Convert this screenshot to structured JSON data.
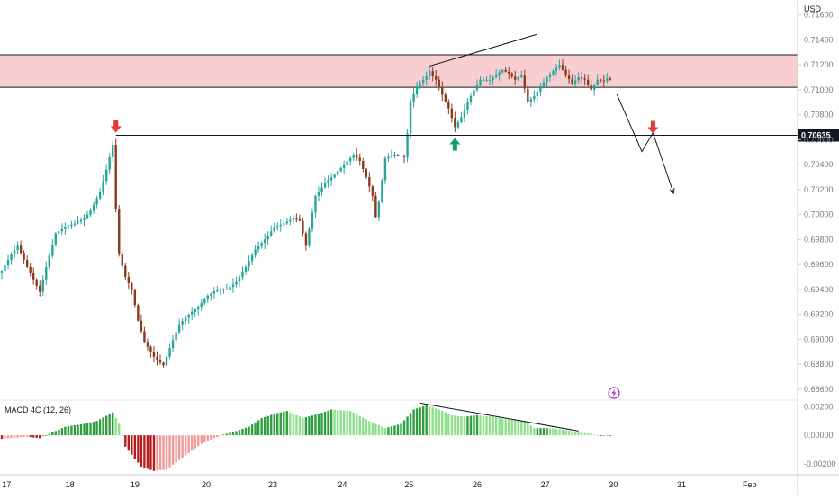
{
  "currency_unit": "USD",
  "indicator": {
    "name": "MACD 4C (12, 26)"
  },
  "price_tag": "0.70635",
  "colors": {
    "bull": "#26a69a",
    "bear": "#8b3a1e",
    "zone_fill": "#f7c5cb",
    "arrow_red": "#e53935",
    "arrow_green": "#0f9d77",
    "hist_pos_strong": "#2e9e3e",
    "hist_pos_light": "#8ee08a",
    "hist_neg_strong": "#b71c1c",
    "hist_neg_light": "#ef9a9a",
    "lightning": "#9c27b0"
  },
  "chart_data": {
    "type": "candlestick",
    "price_axis": {
      "ticks": [
        "0.71600",
        "0.71400",
        "0.71200",
        "0.71000",
        "0.70800",
        "0.70600",
        "0.70400",
        "0.70200",
        "0.70000",
        "0.69800",
        "0.69600",
        "0.69400",
        "0.69200",
        "0.69000",
        "0.68800",
        "0.68600"
      ],
      "ylim": [
        0.6852,
        0.7172
      ]
    },
    "time_axis": {
      "labels": [
        "17",
        "18",
        "19",
        "20",
        "23",
        "24",
        "25",
        "26",
        "27",
        "30",
        "31",
        "Feb"
      ]
    },
    "indicator_axis": {
      "ticks": [
        "0.00200",
        "0.00000",
        "-0.00200"
      ],
      "ylim": [
        -0.0027,
        0.0024
      ]
    },
    "resistance_zone": {
      "low": 0.7102,
      "high": 0.7128
    },
    "horizontal_level": 0.70635,
    "candle_anchors": [
      {
        "i": 0,
        "p": 0.6955
      },
      {
        "i": 3,
        "p": 0.6968
      },
      {
        "i": 5,
        "p": 0.6975
      },
      {
        "i": 8,
        "p": 0.6958
      },
      {
        "i": 10,
        "p": 0.6948
      },
      {
        "i": 12,
        "p": 0.6938
      },
      {
        "i": 14,
        "p": 0.6958
      },
      {
        "i": 17,
        "p": 0.6985
      },
      {
        "i": 20,
        "p": 0.699
      },
      {
        "i": 23,
        "p": 0.6993
      },
      {
        "i": 26,
        "p": 0.6997
      },
      {
        "i": 28,
        "p": 0.7003
      },
      {
        "i": 31,
        "p": 0.7018
      },
      {
        "i": 33,
        "p": 0.7036
      },
      {
        "i": 35,
        "p": 0.7056
      },
      {
        "i": 36,
        "p": 0.7004
      },
      {
        "i": 37,
        "p": 0.6968
      },
      {
        "i": 39,
        "p": 0.695
      },
      {
        "i": 41,
        "p": 0.694
      },
      {
        "i": 43,
        "p": 0.6915
      },
      {
        "i": 45,
        "p": 0.6898
      },
      {
        "i": 48,
        "p": 0.6886
      },
      {
        "i": 51,
        "p": 0.6879
      },
      {
        "i": 53,
        "p": 0.6893
      },
      {
        "i": 56,
        "p": 0.6912
      },
      {
        "i": 59,
        "p": 0.692
      },
      {
        "i": 62,
        "p": 0.6926
      },
      {
        "i": 65,
        "p": 0.6935
      },
      {
        "i": 68,
        "p": 0.694
      },
      {
        "i": 71,
        "p": 0.694
      },
      {
        "i": 74,
        "p": 0.6946
      },
      {
        "i": 77,
        "p": 0.6958
      },
      {
        "i": 80,
        "p": 0.6972
      },
      {
        "i": 83,
        "p": 0.698
      },
      {
        "i": 86,
        "p": 0.699
      },
      {
        "i": 89,
        "p": 0.6993
      },
      {
        "i": 92,
        "p": 0.6997
      },
      {
        "i": 94,
        "p": 0.6995
      },
      {
        "i": 96,
        "p": 0.6975
      },
      {
        "i": 99,
        "p": 0.7015
      },
      {
        "i": 102,
        "p": 0.7025
      },
      {
        "i": 105,
        "p": 0.7032
      },
      {
        "i": 108,
        "p": 0.704
      },
      {
        "i": 111,
        "p": 0.7048
      },
      {
        "i": 113,
        "p": 0.7043
      },
      {
        "i": 115,
        "p": 0.703
      },
      {
        "i": 117,
        "p": 0.7015
      },
      {
        "i": 118,
        "p": 0.6998
      },
      {
        "i": 119,
        "p": 0.701
      },
      {
        "i": 121,
        "p": 0.7045
      },
      {
        "i": 124,
        "p": 0.7048
      },
      {
        "i": 127,
        "p": 0.7046
      },
      {
        "i": 128,
        "p": 0.7065
      },
      {
        "i": 129,
        "p": 0.709
      },
      {
        "i": 131,
        "p": 0.7103
      },
      {
        "i": 133,
        "p": 0.7108
      },
      {
        "i": 135,
        "p": 0.7115
      },
      {
        "i": 137,
        "p": 0.7108
      },
      {
        "i": 139,
        "p": 0.7096
      },
      {
        "i": 141,
        "p": 0.7085
      },
      {
        "i": 143,
        "p": 0.707
      },
      {
        "i": 145,
        "p": 0.7078
      },
      {
        "i": 147,
        "p": 0.709
      },
      {
        "i": 149,
        "p": 0.71
      },
      {
        "i": 151,
        "p": 0.7108
      },
      {
        "i": 154,
        "p": 0.7108
      },
      {
        "i": 156,
        "p": 0.7112
      },
      {
        "i": 158,
        "p": 0.7116
      },
      {
        "i": 160,
        "p": 0.7113
      },
      {
        "i": 162,
        "p": 0.7108
      },
      {
        "i": 164,
        "p": 0.7112
      },
      {
        "i": 166,
        "p": 0.709
      },
      {
        "i": 168,
        "p": 0.7095
      },
      {
        "i": 170,
        "p": 0.7102
      },
      {
        "i": 172,
        "p": 0.711
      },
      {
        "i": 174,
        "p": 0.7115
      },
      {
        "i": 176,
        "p": 0.712
      },
      {
        "i": 178,
        "p": 0.7112
      },
      {
        "i": 180,
        "p": 0.7105
      },
      {
        "i": 182,
        "p": 0.711
      },
      {
        "i": 184,
        "p": 0.7108
      },
      {
        "i": 186,
        "p": 0.71
      },
      {
        "i": 188,
        "p": 0.7108
      },
      {
        "i": 190,
        "p": 0.7107
      },
      {
        "i": 191,
        "p": 0.7109
      },
      {
        "i": 192,
        "p": 0.7108
      }
    ],
    "macd_anchors": [
      {
        "i": 0,
        "v": -0.00025
      },
      {
        "i": 8,
        "v": -0.0001
      },
      {
        "i": 12,
        "v": -0.0002
      },
      {
        "i": 16,
        "v": 0.0002
      },
      {
        "i": 20,
        "v": 0.0006
      },
      {
        "i": 26,
        "v": 0.0008
      },
      {
        "i": 30,
        "v": 0.001
      },
      {
        "i": 35,
        "v": 0.0016
      },
      {
        "i": 37,
        "v": 0.0008
      },
      {
        "i": 39,
        "v": -0.0008
      },
      {
        "i": 44,
        "v": -0.0022
      },
      {
        "i": 48,
        "v": -0.0025
      },
      {
        "i": 52,
        "v": -0.0024
      },
      {
        "i": 58,
        "v": -0.0014
      },
      {
        "i": 63,
        "v": -0.0006
      },
      {
        "i": 67,
        "v": -0.0002
      },
      {
        "i": 70,
        "v": 5e-05
      },
      {
        "i": 74,
        "v": 0.0003
      },
      {
        "i": 78,
        "v": 0.0006
      },
      {
        "i": 82,
        "v": 0.0012
      },
      {
        "i": 86,
        "v": 0.0015
      },
      {
        "i": 90,
        "v": 0.0017
      },
      {
        "i": 95,
        "v": 0.0012
      },
      {
        "i": 100,
        "v": 0.0015
      },
      {
        "i": 104,
        "v": 0.0018
      },
      {
        "i": 110,
        "v": 0.0017
      },
      {
        "i": 116,
        "v": 0.001
      },
      {
        "i": 121,
        "v": 0.0005
      },
      {
        "i": 126,
        "v": 0.0008
      },
      {
        "i": 130,
        "v": 0.0018
      },
      {
        "i": 134,
        "v": 0.0021
      },
      {
        "i": 138,
        "v": 0.0018
      },
      {
        "i": 142,
        "v": 0.0014
      },
      {
        "i": 146,
        "v": 0.0013
      },
      {
        "i": 150,
        "v": 0.0014
      },
      {
        "i": 155,
        "v": 0.0013
      },
      {
        "i": 160,
        "v": 0.0011
      },
      {
        "i": 165,
        "v": 0.001
      },
      {
        "i": 168,
        "v": 0.0005
      },
      {
        "i": 172,
        "v": 0.0005
      },
      {
        "i": 177,
        "v": 0.0004
      },
      {
        "i": 182,
        "v": 0.0002
      },
      {
        "i": 186,
        "v": 0.0001
      },
      {
        "i": 189,
        "v": -5e-05
      },
      {
        "i": 192,
        "v": 0.0
      }
    ]
  }
}
